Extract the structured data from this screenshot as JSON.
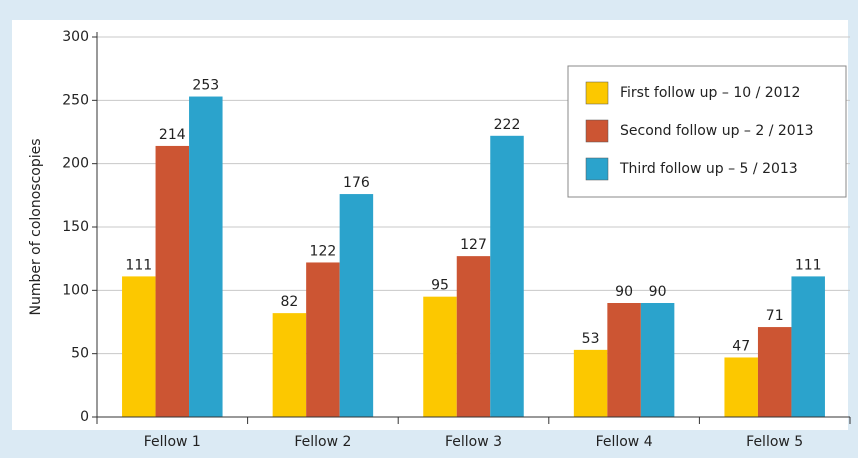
{
  "chart_data": {
    "type": "bar",
    "y_label": "Number of colonoscopies",
    "categories": [
      "Fellow 1",
      "Fellow 2",
      "Fellow 3",
      "Fellow 4",
      "Fellow 5"
    ],
    "series": [
      {
        "name": "First follow up – 10 / 2012",
        "color": "#fcc800",
        "values": [
          111,
          82,
          95,
          53,
          47
        ]
      },
      {
        "name": "Second follow up – 2 / 2013",
        "color": "#cc5533",
        "values": [
          214,
          122,
          127,
          90,
          71
        ]
      },
      {
        "name": "Third follow up – 5 / 2013",
        "color": "#2ba3cc",
        "values": [
          253,
          176,
          222,
          90,
          111
        ]
      }
    ],
    "ylim": [
      0,
      300
    ],
    "yticks": [
      0,
      50,
      100,
      150,
      200,
      250,
      300
    ],
    "grid": true,
    "legend": "upper right"
  }
}
